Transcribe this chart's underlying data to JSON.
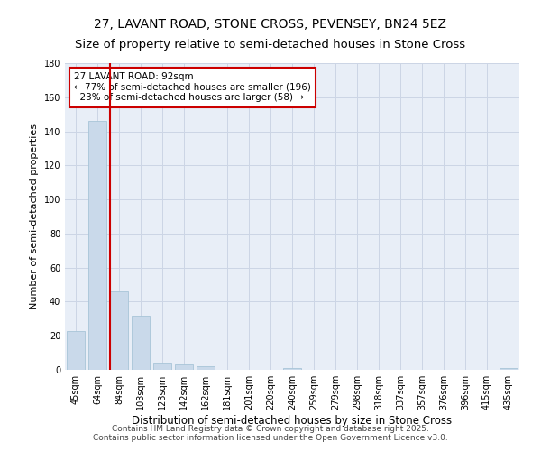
{
  "title": "27, LAVANT ROAD, STONE CROSS, PEVENSEY, BN24 5EZ",
  "subtitle": "Size of property relative to semi-detached houses in Stone Cross",
  "xlabel": "Distribution of semi-detached houses by size in Stone Cross",
  "ylabel": "Number of semi-detached properties",
  "categories": [
    "45sqm",
    "64sqm",
    "84sqm",
    "103sqm",
    "123sqm",
    "142sqm",
    "162sqm",
    "181sqm",
    "201sqm",
    "220sqm",
    "240sqm",
    "259sqm",
    "279sqm",
    "298sqm",
    "318sqm",
    "337sqm",
    "357sqm",
    "376sqm",
    "396sqm",
    "415sqm",
    "435sqm"
  ],
  "values": [
    23,
    146,
    46,
    32,
    4,
    3,
    2,
    0,
    0,
    0,
    1,
    0,
    0,
    0,
    0,
    0,
    0,
    0,
    0,
    0,
    1
  ],
  "bar_color": "#c9d9ea",
  "bar_edge_color": "#a8c4d8",
  "subject_line_color": "#cc0000",
  "annotation_text": "27 LAVANT ROAD: 92sqm\n← 77% of semi-detached houses are smaller (196)\n  23% of semi-detached houses are larger (58) →",
  "annotation_box_color": "#cc0000",
  "ylim": [
    0,
    180
  ],
  "yticks": [
    0,
    20,
    40,
    60,
    80,
    100,
    120,
    140,
    160,
    180
  ],
  "grid_color": "#ccd5e5",
  "background_color": "#e8eef7",
  "footer_text": "Contains HM Land Registry data © Crown copyright and database right 2025.\nContains public sector information licensed under the Open Government Licence v3.0.",
  "title_fontsize": 10,
  "subtitle_fontsize": 9.5,
  "xlabel_fontsize": 8.5,
  "ylabel_fontsize": 8,
  "tick_fontsize": 7,
  "annotation_fontsize": 7.5,
  "footer_fontsize": 6.5
}
